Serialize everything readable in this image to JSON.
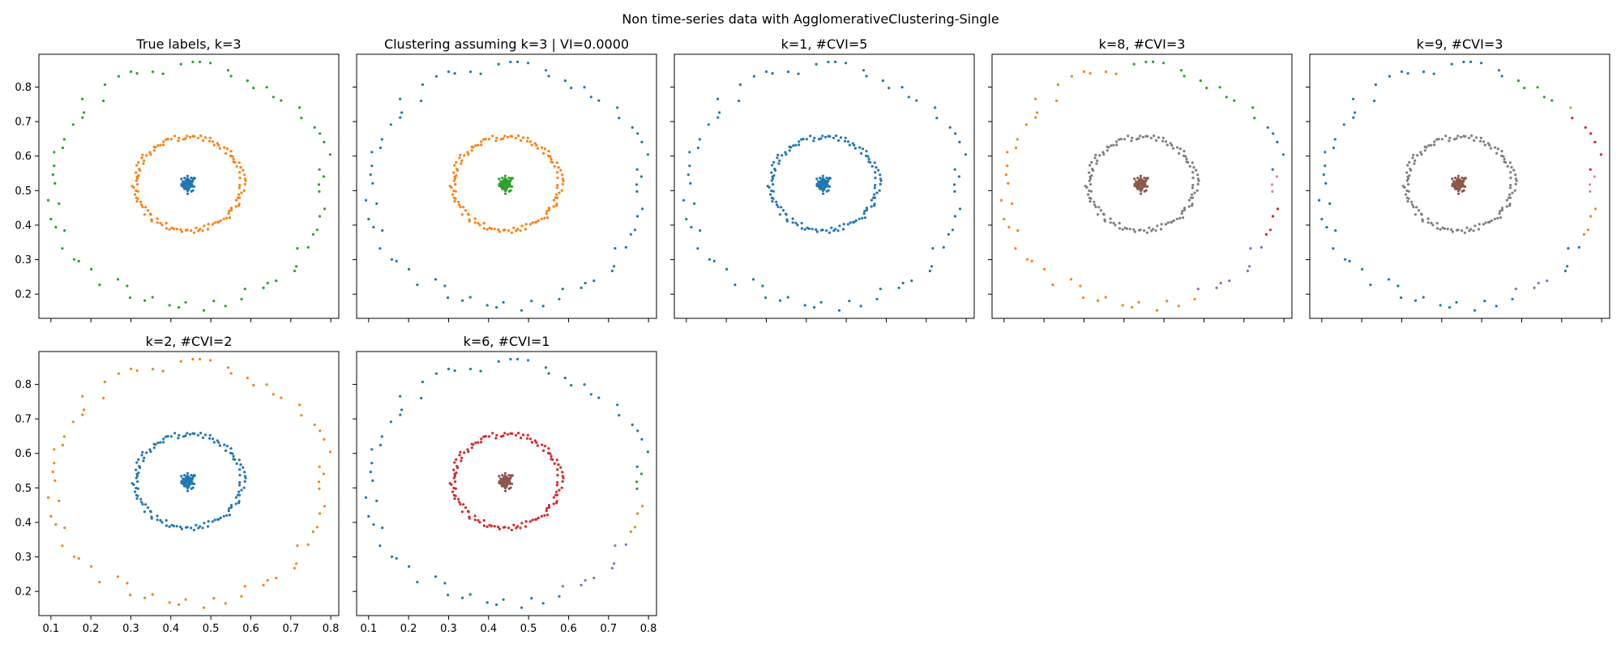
{
  "figure": {
    "suptitle": "Non time-series data with AgglomerativeClustering-Single"
  },
  "palette": {
    "blue": "#1f77b4",
    "orange": "#ff7f0e",
    "green": "#2ca02c",
    "red": "#d62728",
    "purple": "#9467bd",
    "brown": "#8c564b",
    "pink": "#e377c2",
    "gray": "#7f7f7f",
    "olive": "#bcbd22"
  },
  "chart_data": [
    {
      "type": "scatter",
      "title": "True labels, k=3",
      "xlim": [
        0.07,
        0.82
      ],
      "ylim": [
        0.13,
        0.895
      ],
      "xticks": [
        0.1,
        0.2,
        0.3,
        0.4,
        0.5,
        0.6,
        0.7,
        0.8
      ],
      "yticks": [
        0.2,
        0.3,
        0.4,
        0.5,
        0.6,
        0.7,
        0.8
      ],
      "show_xtick_labels": false,
      "show_ytick_labels": true,
      "rings": [
        {
          "name": "core",
          "cx": 0.445,
          "cy": 0.52,
          "r": 0.0,
          "n": 60
        },
        {
          "name": "middle",
          "cx": 0.445,
          "cy": 0.52,
          "r": 0.135,
          "n": 130
        },
        {
          "name": "outer",
          "cx": 0.445,
          "cy": 0.515,
          "r": 0.345,
          "n": 72
        }
      ],
      "coloring": [
        {
          "ring": "core",
          "color": "blue"
        },
        {
          "ring": "middle",
          "color": "orange"
        },
        {
          "ring": "outer",
          "color": "green"
        }
      ]
    },
    {
      "type": "scatter",
      "title": "Clustering assuming k=3 | VI=0.0000",
      "xlim": [
        0.07,
        0.82
      ],
      "ylim": [
        0.13,
        0.895
      ],
      "xticks": [
        0.1,
        0.2,
        0.3,
        0.4,
        0.5,
        0.6,
        0.7,
        0.8
      ],
      "yticks": [
        0.2,
        0.3,
        0.4,
        0.5,
        0.6,
        0.7,
        0.8
      ],
      "show_xtick_labels": false,
      "show_ytick_labels": false,
      "coloring": [
        {
          "ring": "core",
          "color": "green"
        },
        {
          "ring": "middle",
          "color": "orange"
        },
        {
          "ring": "outer",
          "color": "blue"
        }
      ]
    },
    {
      "type": "scatter",
      "title": "k=1, #CVI=5",
      "xlim": [
        0.07,
        0.82
      ],
      "ylim": [
        0.13,
        0.895
      ],
      "xticks": [
        0.1,
        0.2,
        0.3,
        0.4,
        0.5,
        0.6,
        0.7,
        0.8
      ],
      "yticks": [
        0.2,
        0.3,
        0.4,
        0.5,
        0.6,
        0.7,
        0.8
      ],
      "show_xtick_labels": false,
      "show_ytick_labels": false,
      "coloring": [
        {
          "ring": "core",
          "color": "blue"
        },
        {
          "ring": "middle",
          "color": "blue"
        },
        {
          "ring": "outer",
          "color": "blue"
        }
      ]
    },
    {
      "type": "scatter",
      "title": "k=8, #CVI=3",
      "xlim": [
        0.07,
        0.82
      ],
      "ylim": [
        0.13,
        0.895
      ],
      "xticks": [
        0.1,
        0.2,
        0.3,
        0.4,
        0.5,
        0.6,
        0.7,
        0.8
      ],
      "yticks": [
        0.2,
        0.3,
        0.4,
        0.5,
        0.6,
        0.7,
        0.8
      ],
      "show_xtick_labels": false,
      "show_ytick_labels": false,
      "coloring": [
        {
          "ring": "core",
          "color": "brown"
        },
        {
          "ring": "middle",
          "color": "gray"
        },
        {
          "ring": "outer",
          "color": "orange",
          "arcs": [
            {
              "from": 30,
              "to": 95,
              "color": "green"
            },
            {
              "from": 6,
              "to": 30,
              "color": "blue"
            },
            {
              "from": -9,
              "to": 6,
              "color": "pink"
            },
            {
              "from": -27,
              "to": -9,
              "color": "red"
            },
            {
              "from": -65,
              "to": -27,
              "color": "purple"
            }
          ]
        }
      ]
    },
    {
      "type": "scatter",
      "title": "k=9, #CVI=3",
      "xlim": [
        0.07,
        0.82
      ],
      "ylim": [
        0.13,
        0.895
      ],
      "xticks": [
        0.1,
        0.2,
        0.3,
        0.4,
        0.5,
        0.6,
        0.7,
        0.8
      ],
      "yticks": [
        0.2,
        0.3,
        0.4,
        0.5,
        0.6,
        0.7,
        0.8
      ],
      "show_xtick_labels": false,
      "show_ytick_labels": false,
      "coloring": [
        {
          "ring": "core",
          "color": "brown"
        },
        {
          "ring": "middle",
          "color": "gray"
        },
        {
          "ring": "outer",
          "color": "blue",
          "arcs": [
            {
              "from": 45,
              "to": 70,
              "color": "green"
            },
            {
              "from": 35,
              "to": 45,
              "color": "olive"
            },
            {
              "from": 6,
              "to": 35,
              "color": "red"
            },
            {
              "from": -9,
              "to": 6,
              "color": "pink"
            },
            {
              "from": -30,
              "to": -9,
              "color": "orange"
            },
            {
              "from": -65,
              "to": -45,
              "color": "purple"
            }
          ]
        }
      ]
    },
    {
      "type": "scatter",
      "title": "k=2, #CVI=2",
      "xlim": [
        0.07,
        0.82
      ],
      "ylim": [
        0.13,
        0.895
      ],
      "xticks": [
        0.1,
        0.2,
        0.3,
        0.4,
        0.5,
        0.6,
        0.7,
        0.8
      ],
      "yticks": [
        0.2,
        0.3,
        0.4,
        0.5,
        0.6,
        0.7,
        0.8
      ],
      "show_xtick_labels": true,
      "show_ytick_labels": true,
      "coloring": [
        {
          "ring": "core",
          "color": "blue"
        },
        {
          "ring": "middle",
          "color": "blue"
        },
        {
          "ring": "outer",
          "color": "orange"
        }
      ]
    },
    {
      "type": "scatter",
      "title": "k=6, #CVI=1",
      "xlim": [
        0.07,
        0.82
      ],
      "ylim": [
        0.13,
        0.895
      ],
      "xticks": [
        0.1,
        0.2,
        0.3,
        0.4,
        0.5,
        0.6,
        0.7,
        0.8
      ],
      "yticks": [
        0.2,
        0.3,
        0.4,
        0.5,
        0.6,
        0.7,
        0.8
      ],
      "show_xtick_labels": true,
      "show_ytick_labels": false,
      "coloring": [
        {
          "ring": "core",
          "color": "brown"
        },
        {
          "ring": "middle",
          "color": "red"
        },
        {
          "ring": "outer",
          "color": "blue",
          "arcs": [
            {
              "from": -9,
              "to": 6,
              "color": "green"
            },
            {
              "from": -30,
              "to": -9,
              "color": "orange"
            },
            {
              "from": -65,
              "to": -30,
              "color": "purple"
            }
          ]
        }
      ]
    }
  ]
}
